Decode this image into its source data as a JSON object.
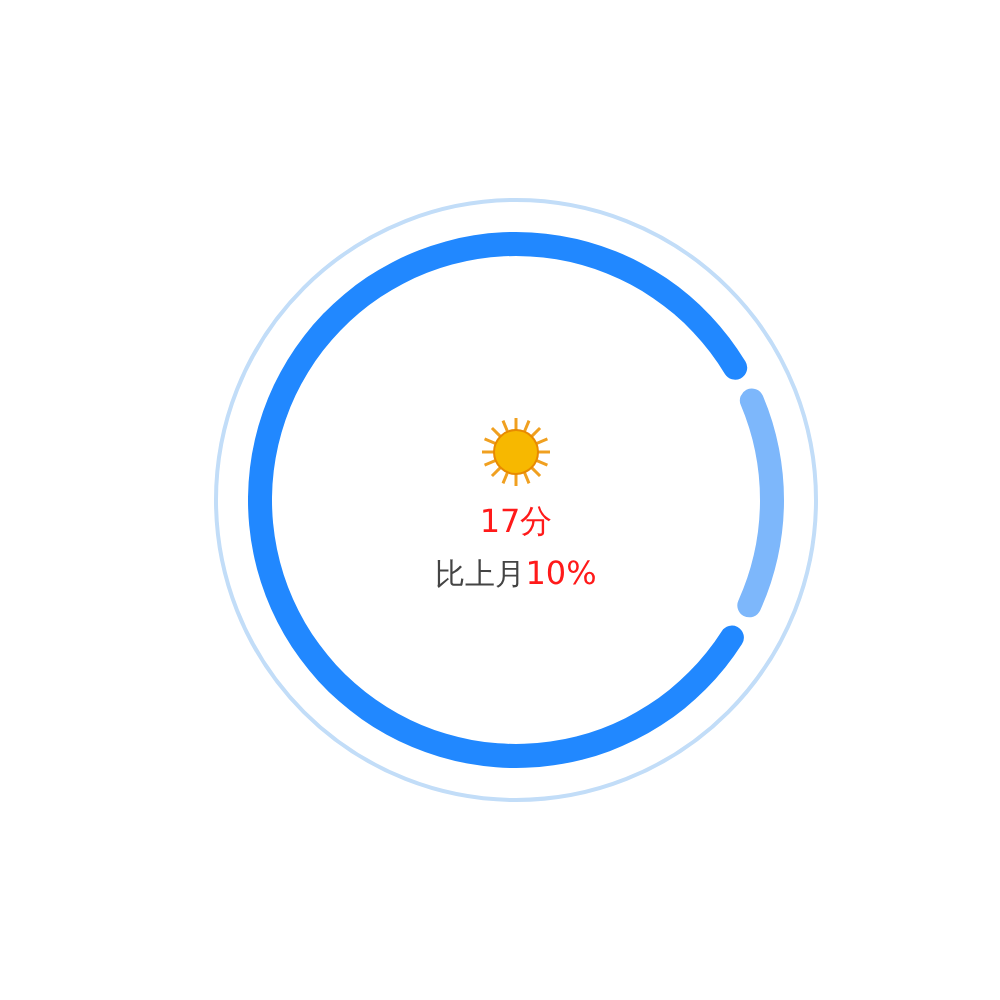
{
  "chart_data": {
    "type": "donut",
    "categories": [
      null,
      null
    ],
    "values": [
      15,
      85
    ],
    "colors": [
      "#7db7fb",
      "#2188ff"
    ],
    "annotations": [
      "17分",
      "比上月",
      "10%"
    ]
  }
}
